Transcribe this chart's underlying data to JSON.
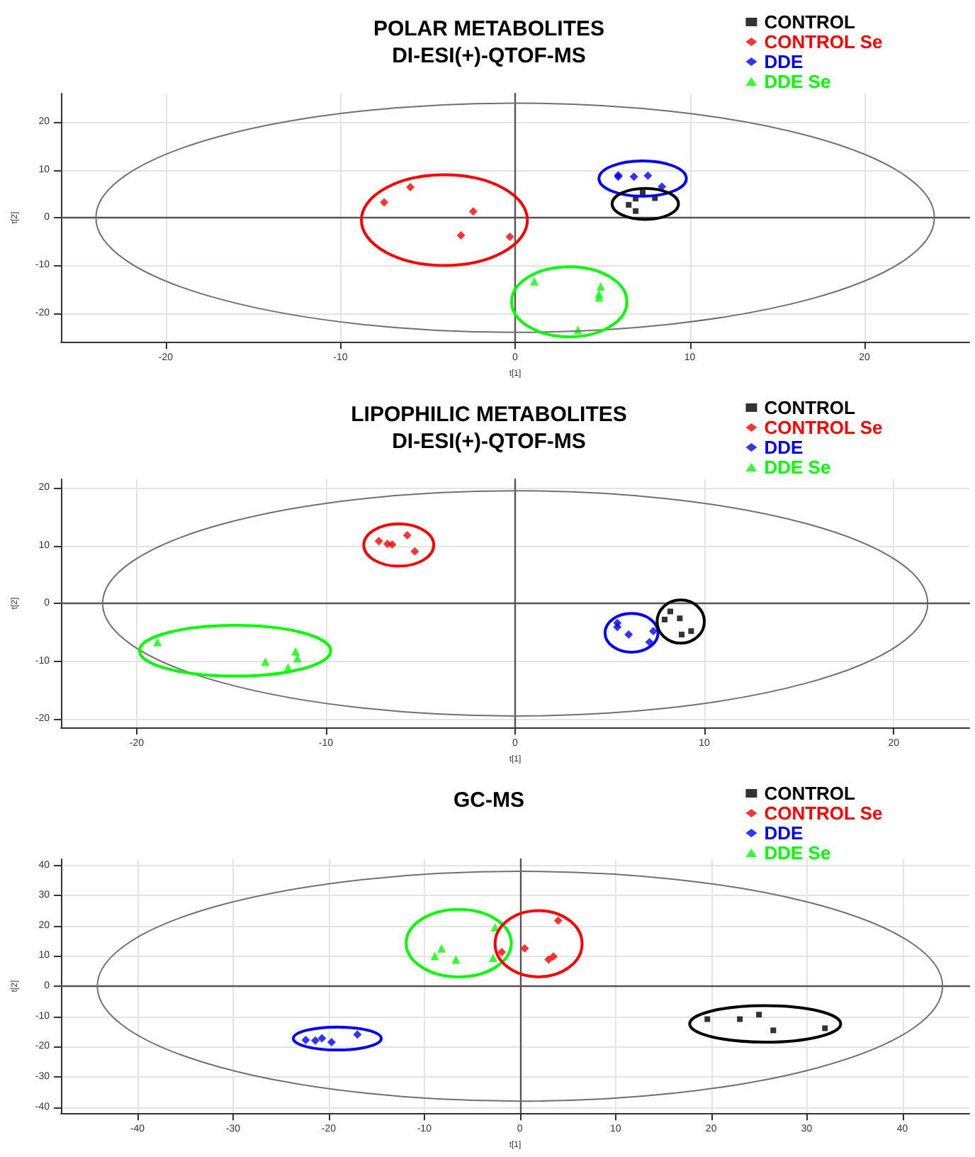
{
  "chart_data": [
    {
      "type": "scatter",
      "title": "POLAR METABOLITES",
      "subtitle": "DI-ESI(+)-QTOF-MS",
      "xlabel": "t[1]",
      "ylabel": "t[2]",
      "xlim": [
        -26,
        26
      ],
      "ylim": [
        -26,
        26
      ],
      "xticks": [
        -20,
        -10,
        0,
        10,
        20
      ],
      "yticks": [
        -20,
        -10,
        0,
        10,
        20
      ],
      "grid": true,
      "legend": "top right",
      "series": [
        {
          "name": "CONTROL",
          "color": "#000000",
          "marker": "square",
          "x": [
            6.5,
            6.9,
            7.3,
            6.9,
            8.0
          ],
          "values": [
            2.7,
            4.0,
            5.2,
            1.4,
            4.1
          ]
        },
        {
          "name": "CONTROL Se",
          "color": "#ff0000",
          "marker": "diamond",
          "x": [
            -7.5,
            -6.0,
            -2.4,
            -3.1,
            -0.3
          ],
          "values": [
            3.2,
            6.4,
            1.3,
            -3.7,
            -4.0
          ]
        },
        {
          "name": "DDE",
          "color": "#0000ff",
          "marker": "diamond",
          "x": [
            5.9,
            5.9,
            6.8,
            7.6,
            8.4
          ],
          "values": [
            8.9,
            8.6,
            8.6,
            8.8,
            6.5
          ]
        },
        {
          "name": "DDE Se",
          "color": "#00ff00",
          "marker": "triangle",
          "x": [
            1.1,
            4.9,
            4.8,
            4.8,
            3.6
          ],
          "values": [
            -13.3,
            -14.4,
            -16.0,
            -16.7,
            -23.5
          ]
        }
      ]
    },
    {
      "type": "scatter",
      "title": "LIPOPHILIC METABOLITES",
      "subtitle": "DI-ESI(+)-QTOF-MS",
      "xlabel": "t[1]",
      "ylabel": "t[2]",
      "xlim": [
        -24,
        24
      ],
      "ylim": [
        -21.5,
        21.5
      ],
      "xticks": [
        -20,
        -10,
        0,
        10,
        20
      ],
      "yticks": [
        -20,
        -10,
        0,
        10,
        20
      ],
      "grid": true,
      "legend": "top right",
      "series": [
        {
          "name": "CONTROL",
          "color": "#000000",
          "marker": "square",
          "x": [
            7.9,
            8.2,
            8.7,
            8.8,
            9.3
          ],
          "values": [
            -2.8,
            -1.4,
            -2.6,
            -5.4,
            -4.8
          ]
        },
        {
          "name": "CONTROL Se",
          "color": "#ff0000",
          "marker": "diamond",
          "x": [
            -7.2,
            -6.75,
            -6.5,
            -5.7,
            -5.3
          ],
          "values": [
            10.8,
            10.3,
            10.2,
            11.8,
            9.0
          ]
        },
        {
          "name": "DDE",
          "color": "#0000ff",
          "marker": "diamond",
          "x": [
            5.4,
            5.4,
            6.0,
            7.3,
            7.1
          ],
          "values": [
            -3.4,
            -4.1,
            -5.4,
            -4.8,
            -6.7
          ]
        },
        {
          "name": "DDE Se",
          "color": "#00ff00",
          "marker": "triangle",
          "x": [
            -18.9,
            -13.2,
            -12.0,
            -11.6,
            -11.5
          ],
          "values": [
            -6.7,
            -10.1,
            -11.1,
            -8.3,
            -9.5
          ]
        }
      ]
    },
    {
      "type": "scatter",
      "title": "GC-MS",
      "xlabel": "t[1]",
      "ylabel": "t[2]",
      "xlim": [
        -48,
        47
      ],
      "ylim": [
        -42,
        42
      ],
      "xticks": [
        -40,
        -30,
        -20,
        -10,
        0,
        10,
        20,
        30,
        40
      ],
      "yticks": [
        -40,
        -30,
        -20,
        -10,
        0,
        10,
        20,
        30,
        40
      ],
      "grid": true,
      "legend": "top right",
      "series": [
        {
          "name": "CONTROL",
          "color": "#000000",
          "marker": "square",
          "x": [
            19.6,
            23.0,
            25.0,
            26.5,
            31.9
          ],
          "values": [
            -10.9,
            -10.9,
            -9.4,
            -14.6,
            -13.9
          ]
        },
        {
          "name": "CONTROL Se",
          "color": "#ff0000",
          "marker": "diamond",
          "x": [
            -1.9,
            0.5,
            3.0,
            3.5,
            4.0
          ],
          "values": [
            11.3,
            12.5,
            8.8,
            9.8,
            21.7
          ]
        },
        {
          "name": "DDE",
          "color": "#0000ff",
          "marker": "diamond",
          "x": [
            -22.4,
            -21.4,
            -20.7,
            -19.7,
            -17.0
          ],
          "values": [
            -17.8,
            -18.0,
            -17.2,
            -18.5,
            -16.0
          ]
        },
        {
          "name": "DDE Se",
          "color": "#00ff00",
          "marker": "triangle",
          "x": [
            -8.9,
            -8.2,
            -6.7,
            -2.8,
            -2.6
          ],
          "values": [
            10.0,
            12.5,
            8.8,
            9.4,
            19.5
          ]
        }
      ]
    }
  ]
}
